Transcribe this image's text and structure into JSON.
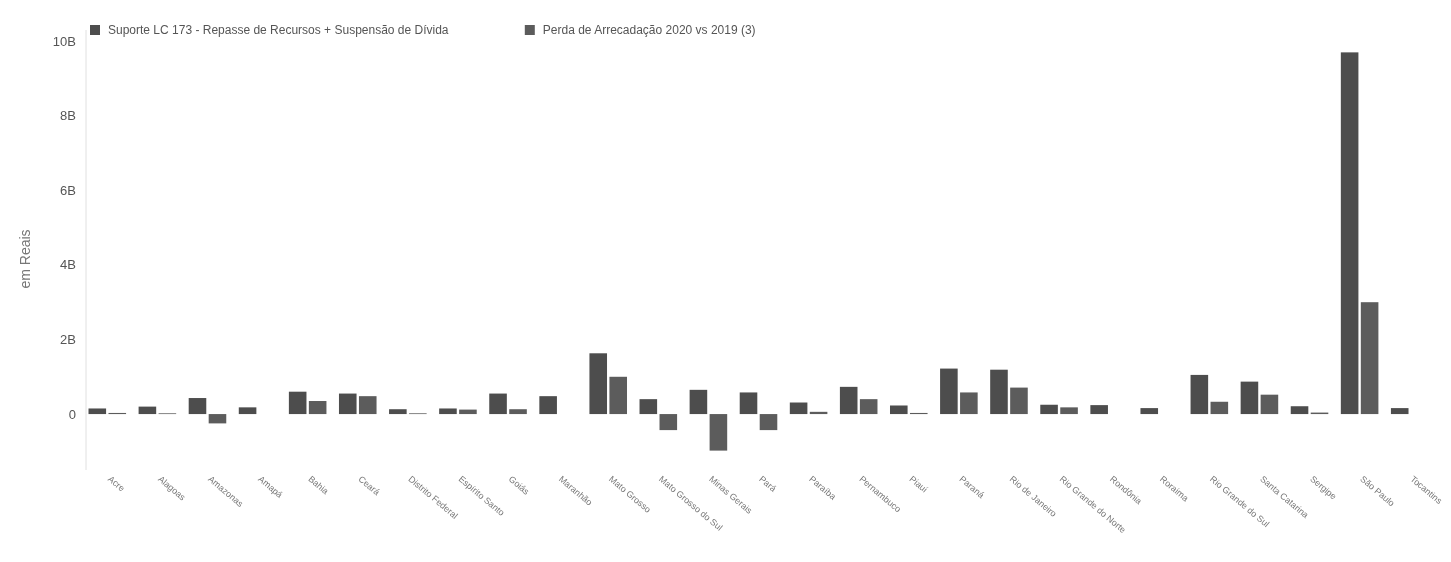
{
  "chart_data": {
    "type": "bar",
    "ylabel": "em Reais",
    "categories": [
      "Acre",
      "Alagoas",
      "Amazonas",
      "Amapá",
      "Bahia",
      "Ceará",
      "Distrito Federal",
      "Espírito Santo",
      "Goiás",
      "Maranhão",
      "Mato Grosso",
      "Mato Grosso do Sul",
      "Minas Gerais",
      "Pará",
      "Paraíba",
      "Pernambuco",
      "Piauí",
      "Paraná",
      "Rio de Janeiro",
      "Rio Grande do Norte",
      "Rondônia",
      "Roraima",
      "Rio Grande do Sul",
      "Santa Catarina",
      "Sergipe",
      "São Paulo",
      "Tocantins"
    ],
    "series": [
      {
        "name": "Suporte LC 173 - Repasse de Recursos + Suspensão de Dívida",
        "color": "#4d4d4d",
        "values": [
          0.15,
          0.2,
          0.43,
          0.18,
          0.6,
          0.55,
          0.13,
          0.15,
          0.55,
          0.48,
          1.63,
          0.4,
          0.65,
          0.58,
          0.31,
          0.73,
          0.23,
          1.22,
          1.19,
          0.25,
          0.24,
          0.16,
          1.05,
          0.87,
          0.21,
          9.7,
          0.16
        ]
      },
      {
        "name": "Perda de Arrecadação 2020 vs 2019 (3)",
        "color": "#5c5c5c",
        "values": [
          0.03,
          0.02,
          -0.25,
          null,
          0.35,
          0.48,
          0.02,
          0.12,
          0.13,
          null,
          1.0,
          -0.43,
          -0.98,
          -0.43,
          0.06,
          0.4,
          0.03,
          0.58,
          0.71,
          0.18,
          null,
          null,
          0.33,
          0.52,
          0.04,
          3.0,
          null
        ]
      }
    ],
    "ylim": [
      -1.5,
      10.3
    ],
    "yticks": [
      {
        "value": 0,
        "label": "0"
      },
      {
        "value": 2,
        "label": "2B"
      },
      {
        "value": 4,
        "label": "4B"
      },
      {
        "value": 6,
        "label": "6B"
      },
      {
        "value": 8,
        "label": "8B"
      },
      {
        "value": 10,
        "label": "10B"
      }
    ],
    "legend": "top left"
  }
}
